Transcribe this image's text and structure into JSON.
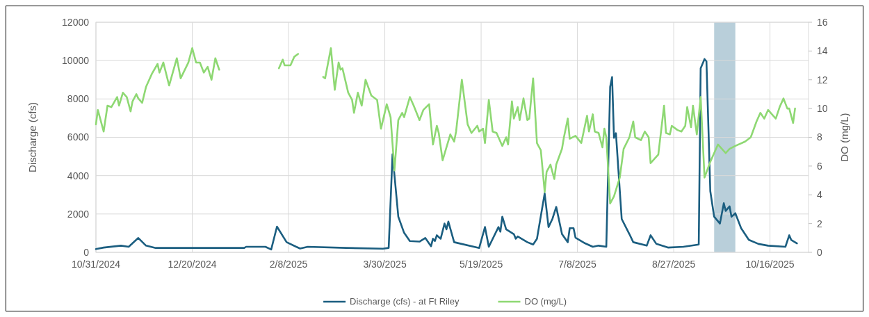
{
  "chart_data": {
    "type": "line",
    "ylabel": "Discharge (cfs)",
    "y2label": "DO (mg/L)",
    "xlim": [
      "2024-10-31",
      "2025-11-05"
    ],
    "xticks": [
      {
        "value": "2024-10-31",
        "label": "10/31/2024"
      },
      {
        "value": "2024-12-20",
        "label": "12/20/2024"
      },
      {
        "value": "2025-02-08",
        "label": "2/8/2025"
      },
      {
        "value": "2025-03-30",
        "label": "3/30/2025"
      },
      {
        "value": "2025-05-19",
        "label": "5/19/2025"
      },
      {
        "value": "2025-07-08",
        "label": "7/8/2025"
      },
      {
        "value": "2025-08-27",
        "label": "8/27/2025"
      },
      {
        "value": "2025-10-16",
        "label": "10/16/2025"
      }
    ],
    "ylim": [
      0,
      12000
    ],
    "yticks": [
      0,
      2000,
      4000,
      6000,
      8000,
      10000,
      12000
    ],
    "y2lim": [
      0,
      16
    ],
    "y2ticks": [
      0,
      2,
      4,
      6,
      8,
      10,
      12,
      14,
      16
    ],
    "grid": true,
    "legend": "bottom",
    "line_style": "solid",
    "marker": "none",
    "bands": [
      {
        "axis": "x",
        "from": "2025-09-17",
        "to": "2025-09-28",
        "color": "#b9cfda"
      }
    ],
    "series": [
      {
        "name": "Discharge (cfs) - at Ft Riley",
        "color": "#1b5e80",
        "axis": "y",
        "x": [
          "2024-10-31",
          "2024-11-04",
          "2024-11-13",
          "2024-11-17",
          "2024-11-22",
          "2024-11-26",
          "2024-12-01",
          "2025-01-16",
          "2025-01-17",
          "2025-01-27",
          "2025-01-30",
          "2025-02-02",
          "2025-02-07",
          "2025-02-12",
          "2025-02-14",
          "2025-02-18",
          "2025-03-10",
          "2025-03-29",
          "2025-04-01",
          "2025-04-03",
          "2025-04-06",
          "2025-04-09",
          "2025-04-12",
          "2025-04-17",
          "2025-04-20",
          "2025-04-23",
          "2025-04-24",
          "2025-04-25",
          "2025-04-26",
          "2025-04-28",
          "2025-04-30",
          "2025-05-01",
          "2025-05-02",
          "2025-05-05",
          "2025-05-18",
          "2025-05-21",
          "2025-05-23",
          "2025-05-28",
          "2025-05-29",
          "2025-05-30",
          "2025-06-01",
          "2025-06-05",
          "2025-06-06",
          "2025-06-07",
          "2025-06-12",
          "2025-06-15",
          "2025-06-17",
          "2025-06-21",
          "2025-06-23",
          "2025-06-25",
          "2025-06-27",
          "2025-06-30",
          "2025-07-03",
          "2025-07-04",
          "2025-07-06",
          "2025-07-07",
          "2025-07-12",
          "2025-07-16",
          "2025-07-19",
          "2025-07-23",
          "2025-07-25",
          "2025-07-26",
          "2025-07-27",
          "2025-07-28",
          "2025-07-31",
          "2025-08-04",
          "2025-08-06",
          "2025-08-13",
          "2025-08-15",
          "2025-08-18",
          "2025-08-24",
          "2025-09-01",
          "2025-09-09",
          "2025-09-10",
          "2025-09-12",
          "2025-09-13",
          "2025-09-15",
          "2025-09-17",
          "2025-09-20",
          "2025-09-22",
          "2025-09-23",
          "2025-09-25",
          "2025-09-26",
          "2025-09-28",
          "2025-10-01",
          "2025-10-05",
          "2025-10-10",
          "2025-10-15",
          "2025-10-24",
          "2025-10-26",
          "2025-10-27",
          "2025-10-30"
        ],
        "values": [
          170,
          250,
          350,
          290,
          750,
          350,
          230,
          230,
          290,
          290,
          150,
          1340,
          530,
          290,
          200,
          290,
          230,
          190,
          230,
          5120,
          1860,
          1020,
          590,
          560,
          750,
          320,
          710,
          590,
          890,
          710,
          1500,
          1200,
          1600,
          530,
          230,
          1320,
          290,
          1320,
          1080,
          1860,
          1200,
          950,
          710,
          830,
          530,
          410,
          710,
          3070,
          1320,
          1740,
          2370,
          950,
          530,
          1260,
          1260,
          770,
          470,
          290,
          350,
          290,
          8630,
          9140,
          5970,
          6210,
          1740,
          950,
          530,
          350,
          890,
          440,
          250,
          290,
          410,
          9600,
          10080,
          9960,
          3190,
          1860,
          1500,
          2560,
          2160,
          2400,
          1860,
          2040,
          1260,
          650,
          440,
          350,
          290,
          890,
          650,
          470
        ]
      },
      {
        "name": "DO (mg/L)",
        "color": "#8ed873",
        "axis": "y2",
        "x": [
          "2024-10-31",
          "2024-11-01",
          "2024-11-04",
          "2024-11-06",
          "2024-11-08",
          "2024-11-11",
          "2024-11-12",
          "2024-11-14",
          "2024-11-16",
          "2024-11-18",
          "2024-11-19",
          "2024-11-21",
          "2024-11-22",
          "2024-11-24",
          "2024-11-26",
          "2024-11-29",
          "2024-12-02",
          "2024-12-03",
          "2024-12-05",
          "2024-12-08",
          "2024-12-12",
          "2024-12-14",
          "2024-12-18",
          "2024-12-20",
          "2024-12-22",
          "2024-12-24",
          "2024-12-26",
          "2024-12-28",
          "2024-12-30",
          "2025-01-01",
          "2025-01-03",
          "2025-01-20",
          "2025-02-03",
          "2025-02-05",
          "2025-02-06",
          "2025-02-09",
          "2025-02-11",
          "2025-02-13",
          "2025-02-20",
          "2025-02-26",
          "2025-02-27",
          "2025-03-02",
          "2025-03-04",
          "2025-03-06",
          "2025-03-07",
          "2025-03-08",
          "2025-03-11",
          "2025-03-13",
          "2025-03-14",
          "2025-03-16",
          "2025-03-18",
          "2025-03-20",
          "2025-03-23",
          "2025-03-26",
          "2025-03-28",
          "2025-03-31",
          "2025-04-02",
          "2025-04-04",
          "2025-04-06",
          "2025-04-08",
          "2025-04-09",
          "2025-04-12",
          "2025-04-14",
          "2025-04-17",
          "2025-04-19",
          "2025-04-22",
          "2025-04-24",
          "2025-04-26",
          "2025-04-27",
          "2025-04-29",
          "2025-05-03",
          "2025-05-05",
          "2025-05-06",
          "2025-05-09",
          "2025-05-12",
          "2025-05-14",
          "2025-05-17",
          "2025-05-18",
          "2025-05-20",
          "2025-05-21",
          "2025-05-23",
          "2025-05-25",
          "2025-05-27",
          "2025-05-30",
          "2025-06-01",
          "2025-06-02",
          "2025-06-04",
          "2025-06-05",
          "2025-06-07",
          "2025-06-08",
          "2025-06-10",
          "2025-06-12",
          "2025-06-13",
          "2025-06-15",
          "2025-06-17",
          "2025-06-19",
          "2025-06-21",
          "2025-06-22",
          "2025-06-24",
          "2025-06-26",
          "2025-06-27",
          "2025-06-30",
          "2025-07-01",
          "2025-07-03",
          "2025-07-04",
          "2025-07-07",
          "2025-07-10",
          "2025-07-13",
          "2025-07-14",
          "2025-07-16",
          "2025-07-17",
          "2025-07-19",
          "2025-07-21",
          "2025-07-22",
          "2025-07-23",
          "2025-07-25",
          "2025-07-27",
          "2025-07-30",
          "2025-08-01",
          "2025-08-04",
          "2025-08-06",
          "2025-08-07",
          "2025-08-10",
          "2025-08-12",
          "2025-08-14",
          "2025-08-15",
          "2025-08-19",
          "2025-08-22",
          "2025-08-23",
          "2025-08-25",
          "2025-08-26",
          "2025-08-29",
          "2025-08-31",
          "2025-09-02",
          "2025-09-03",
          "2025-09-05",
          "2025-09-06",
          "2025-09-08",
          "2025-09-10",
          "2025-09-12",
          "2025-09-15",
          "2025-09-19",
          "2025-09-23",
          "2025-09-25",
          "2025-09-28",
          "2025-10-03",
          "2025-10-06",
          "2025-10-09",
          "2025-10-11",
          "2025-10-13",
          "2025-10-15",
          "2025-10-19",
          "2025-10-21",
          "2025-10-23",
          "2025-10-25",
          "2025-10-26",
          "2025-10-28",
          "2025-10-29"
        ],
        "values": [
          8.9,
          9.9,
          8.4,
          10.2,
          10.1,
          10.8,
          10.2,
          11.1,
          10.8,
          9.8,
          10.5,
          11.0,
          10.7,
          10.4,
          11.5,
          12.4,
          13.1,
          12.5,
          13.2,
          11.6,
          13.5,
          12.1,
          13.2,
          14.2,
          13.2,
          13.2,
          12.5,
          12.9,
          12.0,
          13.5,
          12.7,
          null,
          12.8,
          13.4,
          13.0,
          13.0,
          13.6,
          13.8,
          null,
          12.2,
          12.1,
          14.2,
          11.3,
          13.2,
          12.7,
          12.8,
          11.1,
          10.6,
          9.7,
          11.1,
          10.2,
          12.0,
          10.9,
          10.6,
          8.6,
          10.3,
          9.4,
          5.7,
          9.2,
          9.7,
          9.4,
          10.8,
          10.2,
          9.2,
          9.9,
          10.3,
          7.5,
          8.8,
          8.3,
          6.4,
          8.2,
          7.7,
          8.4,
          12.0,
          8.9,
          8.3,
          8.8,
          8.4,
          8.6,
          7.6,
          10.6,
          8.4,
          8.3,
          7.4,
          8.0,
          7.5,
          10.5,
          9.3,
          10.1,
          9.2,
          10.7,
          9.2,
          9.3,
          12.1,
          7.6,
          7.1,
          4.2,
          5.6,
          6.1,
          5.1,
          6.1,
          7.2,
          8.0,
          9.3,
          7.9,
          8.1,
          7.6,
          9.5,
          8.4,
          9.6,
          8.4,
          8.3,
          7.3,
          8.6,
          8.0,
          3.4,
          3.9,
          5.2,
          7.2,
          8.0,
          9.1,
          8.0,
          7.8,
          8.4,
          8.0,
          6.2,
          6.8,
          10.2,
          8.3,
          8.2,
          8.8,
          8.5,
          8.4,
          8.8,
          10.1,
          8.7,
          10.2,
          8.2,
          10.8,
          5.2,
          6.3,
          7.5,
          6.9,
          7.2,
          7.4,
          7.7,
          8.0,
          9.1,
          9.7,
          9.3,
          9.9,
          9.3,
          10.1,
          10.7,
          10.0,
          10.0,
          9.0,
          10.0
        ]
      }
    ]
  }
}
